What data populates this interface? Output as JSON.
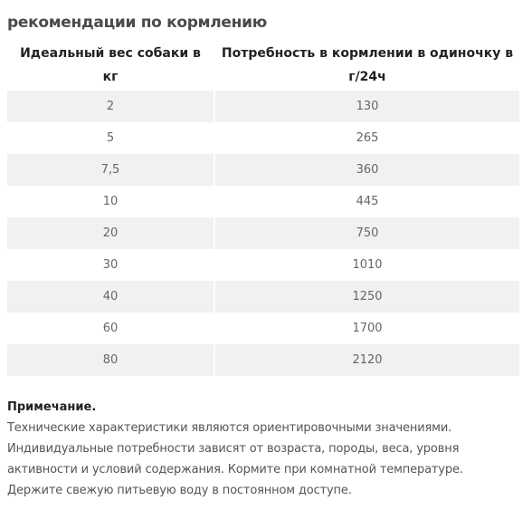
{
  "section": {
    "title": "рекомендации по кормлению"
  },
  "table": {
    "headers": [
      "Идеальный вес собаки в кг",
      "Потребность в кормлении в одиночку в г/24ч"
    ],
    "rows": [
      [
        "2",
        "130"
      ],
      [
        "5",
        "265"
      ],
      [
        "7,5",
        "360"
      ],
      [
        "10",
        "445"
      ],
      [
        "20",
        "750"
      ],
      [
        "30",
        "1010"
      ],
      [
        "40",
        "1250"
      ],
      [
        "60",
        "1700"
      ],
      [
        "80",
        "2120"
      ]
    ]
  },
  "note": {
    "title": "Примечание.",
    "text": "Технические характеристики являются ориентировочными значениями. Индивидуальные потребности зависят от возраста, породы, веса, уровня активности и условий содержания. Кормите при комнатной температуре. Держите свежую питьевую воду в постоянном доступе."
  },
  "colors": {
    "row_stripe": "#f1f1f1",
    "header_text": "#222222",
    "cell_text": "#666666"
  }
}
